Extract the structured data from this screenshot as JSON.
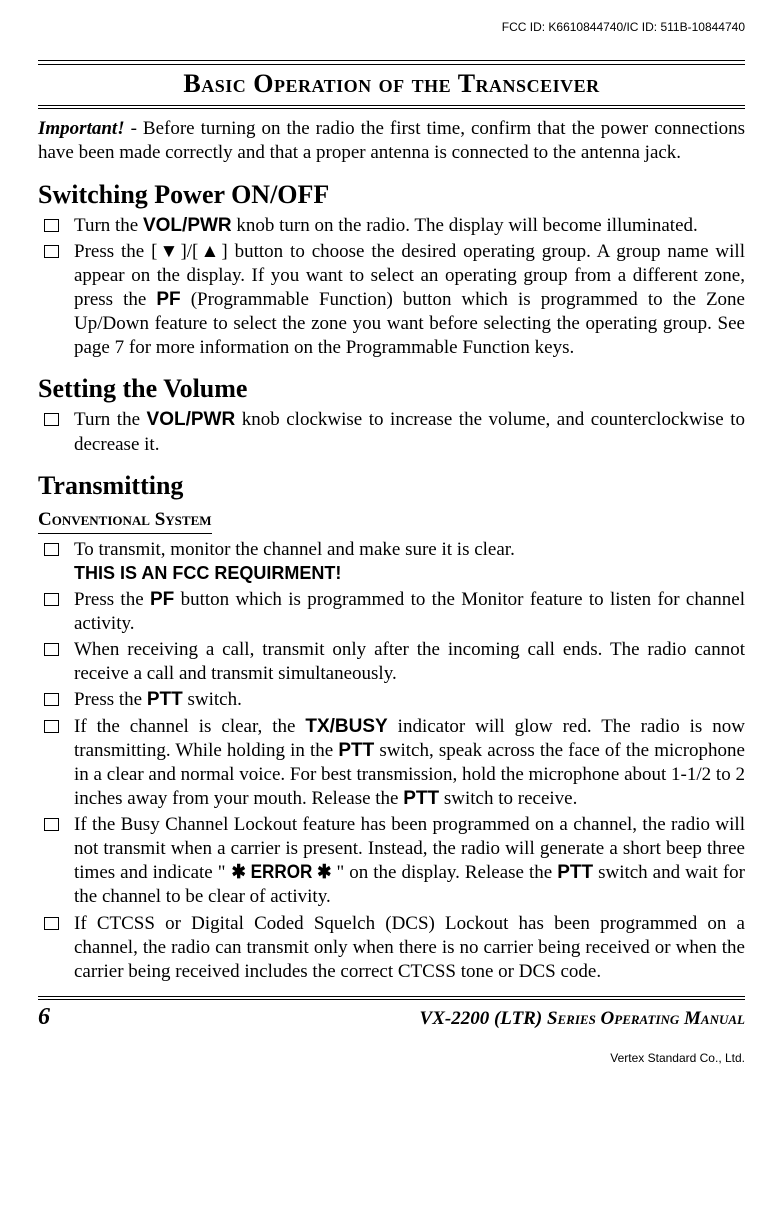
{
  "header": {
    "ids": "FCC ID: K6610844740/IC ID: 511B-10844740"
  },
  "title": "Basic Operation of the Transceiver",
  "intro": {
    "label": "Important!",
    "text": " - Before turning on the radio the first time, confirm that the power connections have been made correctly and that a proper antenna is connected to the antenna jack."
  },
  "s1": {
    "heading": "Switching Power ON/OFF",
    "items": [
      {
        "pre": "Turn the ",
        "b1": "VOL/PWR",
        "post": " knob turn on the radio. The display will become illuminated."
      },
      {
        "pre": "Press the [▼]/[▲] button to choose the desired operating group. A group name will appear on the display. If you want to select an operating group from a different zone, press the ",
        "b1": "PF",
        "post": " (Programmable Function) button which is programmed to the Zone Up/Down feature to select the zone you want before selecting the operating group. See page 7 for more information on the Programmable Function keys."
      }
    ]
  },
  "s2": {
    "heading": "Setting the Volume",
    "items": [
      {
        "pre": "Turn the ",
        "b1": "VOL/PWR",
        "post": " knob clockwise to increase the volume, and counterclockwise to decrease it."
      }
    ]
  },
  "s3": {
    "heading": "Transmitting",
    "sub": "Conventional System",
    "items": [
      {
        "pre": "To transmit, monitor the channel and make sure it is clear.",
        "line2": "THIS IS AN FCC REQUIRMENT!"
      },
      {
        "pre": "Press the ",
        "b1": "PF",
        "post": " button which is programmed to the Monitor feature to listen for channel activity."
      },
      {
        "pre": "When receiving a call, transmit only after the incoming call ends. The radio cannot receive a call and transmit simultaneously."
      },
      {
        "pre": "Press the ",
        "b1": "PTT",
        "post": " switch."
      },
      {
        "pre": "If the channel is clear, the ",
        "b1": "TX/BUSY",
        "mid": " indicator will glow red. The radio is now transmitting. While holding in the ",
        "b2": "PTT",
        "mid2": " switch, speak across the face of the microphone in a clear and normal voice. For best transmission, hold the microphone about 1-1/2 to 2 inches away from your mouth. Release the ",
        "b3": "PTT",
        "post": " switch to receive."
      },
      {
        "pre": "If the Busy Channel Lockout feature has been programmed on a channel, the radio will not transmit when a carrier is present. Instead, the radio will generate a short beep three times and indicate \"",
        "lcd": "✱ ERROR ✱",
        "mid": "\" on the display. Release the ",
        "b1": "PTT",
        "post": " switch and wait for the channel to be clear of activity."
      },
      {
        "pre": "If CTCSS or Digital Coded Squelch (DCS) Lockout has been programmed on a channel, the radio can transmit only when there is no carrier being received or when the carrier being received includes the correct CTCSS tone or DCS code."
      }
    ]
  },
  "footer": {
    "page": "6",
    "manual_pre": "VX-2200 ",
    "manual_paren": "(LTR)",
    "manual_post": " Series Operating Manual"
  },
  "company": "Vertex Standard Co., Ltd."
}
